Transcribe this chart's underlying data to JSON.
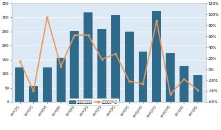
{
  "categories": [
    "2020年1月",
    "2020年2月",
    "2020年3月",
    "2020年4月",
    "2020年5月",
    "2020年6月",
    "2020年7月",
    "2020年8月",
    "2020年9月",
    "2020年10月",
    "2020年11月",
    "2020年12月",
    "2021年1月",
    "2021年2月"
  ],
  "bar_values": [
    122,
    58,
    122,
    158,
    252,
    318,
    260,
    308,
    250,
    178,
    322,
    175,
    128,
    95
  ],
  "line_values": [
    15,
    -40,
    95,
    5,
    62,
    62,
    18,
    28,
    -22,
    -27,
    88,
    -46,
    -18,
    -38
  ],
  "bar_color": "#2e6b8a",
  "line_color": "#e8965a",
  "ylim_left": [
    0,
    350
  ],
  "ylim_right": [
    -60,
    120
  ],
  "yticks_left": [
    0,
    50,
    100,
    150,
    200,
    250,
    300,
    350
  ],
  "yticks_right": [
    -60,
    -40,
    -20,
    0,
    20,
    40,
    60,
    80,
    100,
    120
  ],
  "legend_bar": "总销售额（百万）",
  "legend_line": "环比增长（%）",
  "bg_color": "#ddeaf5",
  "figure_bg": "#ffffff",
  "grid_color": "#ffffff"
}
